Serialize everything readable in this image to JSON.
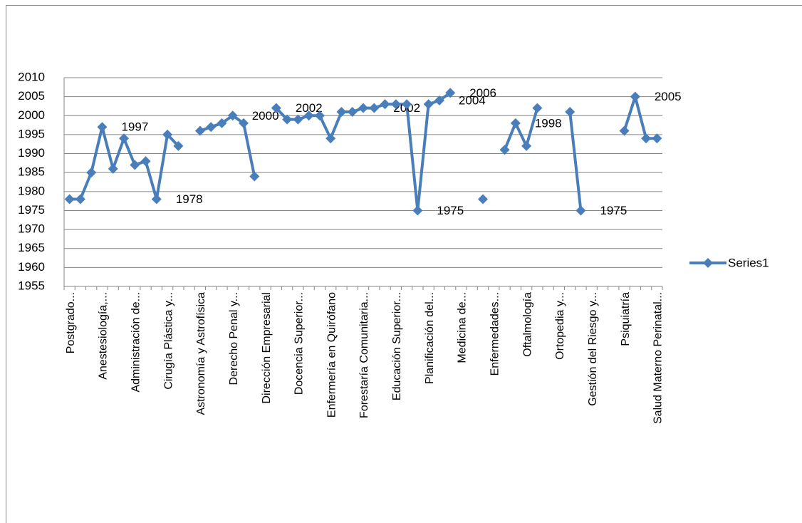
{
  "chart_data": {
    "type": "line",
    "categories": [
      "Postgrado...",
      null,
      null,
      "Anestesiología,...",
      null,
      null,
      "Administración de...",
      null,
      null,
      "Cirugía Plástica y...",
      null,
      null,
      "Astronomía y Astrofísica",
      null,
      null,
      "Derecho Penal y...",
      null,
      null,
      "Dirección Empresarial",
      null,
      null,
      "Docencia Superior...",
      null,
      null,
      "Enfermería en Quirófano",
      null,
      null,
      "Forestaría Comunitaria...",
      null,
      null,
      "Educación Superior...",
      null,
      null,
      "Planificación del...",
      null,
      null,
      "Medicina de...",
      null,
      null,
      "Enfermedades...",
      null,
      null,
      "Oftalmología",
      null,
      null,
      "Ortopedia y...",
      null,
      null,
      "Gestión del Riesgo y...",
      null,
      null,
      "Psiquiatría",
      null,
      null,
      "Salud Materno Perinatal..."
    ],
    "series": [
      {
        "name": "Series1",
        "color": "#4a7ebb",
        "values": [
          1978,
          1978,
          1985,
          1997,
          1986,
          1994,
          1987,
          1988,
          1978,
          1995,
          1992,
          null,
          1996,
          1997,
          1998,
          2000,
          1998,
          1984,
          null,
          2002,
          1999,
          1999,
          2000,
          2000,
          1994,
          2001,
          2001,
          2002,
          2002,
          2003,
          2003,
          2003,
          1975,
          2003,
          2004,
          2006,
          null,
          null,
          1978,
          null,
          1991,
          1998,
          1992,
          2002,
          null,
          null,
          2001,
          1975,
          null,
          null,
          null,
          1996,
          2005,
          1994,
          1994
        ],
        "value_labels": [
          null,
          null,
          null,
          "1997",
          null,
          null,
          null,
          null,
          "1978",
          null,
          null,
          null,
          null,
          null,
          null,
          "2000",
          null,
          null,
          null,
          "2002",
          null,
          null,
          null,
          null,
          null,
          null,
          null,
          null,
          "2002",
          null,
          null,
          null,
          "1975",
          null,
          "2004",
          "2006",
          null,
          null,
          null,
          null,
          null,
          "1998",
          null,
          null,
          null,
          null,
          null,
          "1975",
          null,
          null,
          null,
          null,
          "2005",
          null,
          null
        ]
      }
    ],
    "ylim": [
      1955,
      2010
    ],
    "yticks": [
      1955,
      1960,
      1965,
      1970,
      1975,
      1980,
      1985,
      1990,
      1995,
      2000,
      2005,
      2010
    ],
    "grid": true,
    "legend": "right"
  }
}
